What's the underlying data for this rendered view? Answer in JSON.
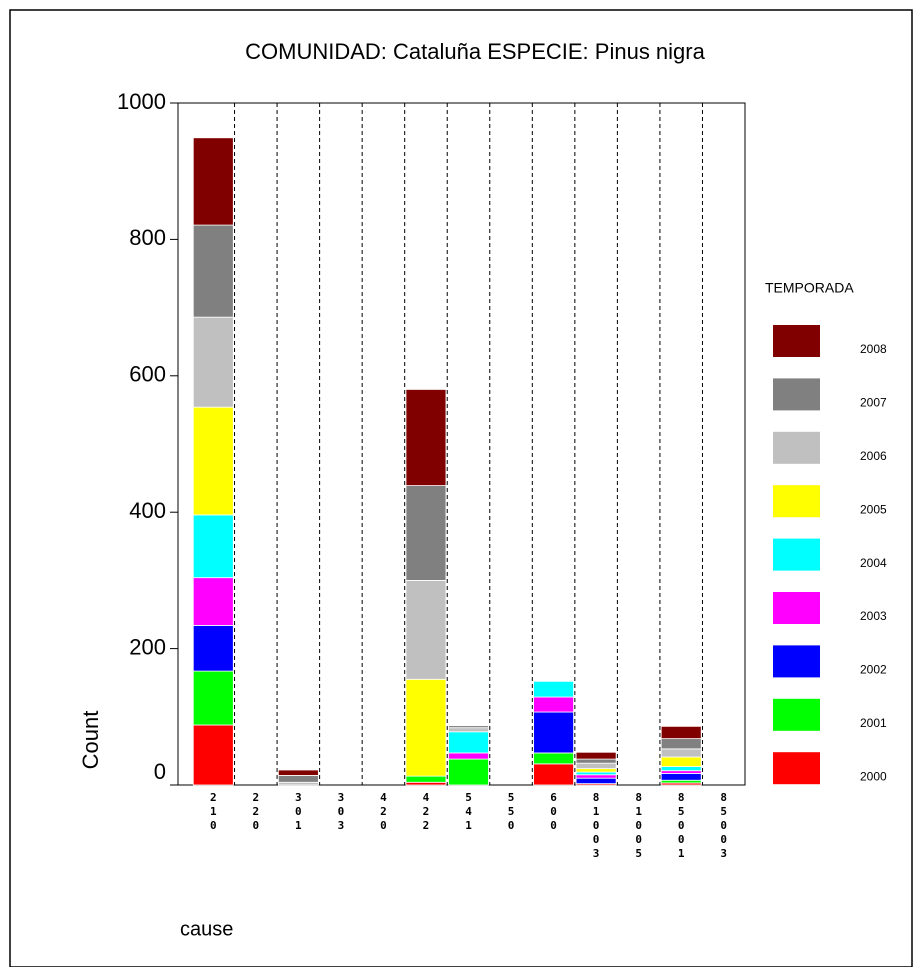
{
  "chart_data": {
    "type": "stacked_bar",
    "title": "COMUNIDAD: Cataluña     ESPECIE:  Pinus nigra",
    "y_label": "Count",
    "x_label": "cause",
    "legend_title": "TEMPORADA",
    "categories": [
      "210",
      "220",
      "301",
      "303",
      "420",
      "422",
      "541",
      "550",
      "600",
      "81003",
      "81005",
      "85001",
      "85003"
    ],
    "series": [
      {
        "name": "2000",
        "color": "#ff0000",
        "values": [
          88,
          0,
          0,
          0,
          0,
          4,
          0,
          0,
          31,
          2,
          0,
          3,
          0
        ]
      },
      {
        "name": "2001",
        "color": "#00ff00",
        "values": [
          79,
          0,
          0,
          0,
          0,
          9,
          38,
          0,
          16,
          0,
          0,
          4,
          0
        ]
      },
      {
        "name": "2002",
        "color": "#0000ff",
        "values": [
          67,
          0,
          0,
          0,
          0,
          0,
          0,
          0,
          60,
          8,
          0,
          10,
          0
        ]
      },
      {
        "name": "2003",
        "color": "#ff00ff",
        "values": [
          70,
          0,
          0,
          0,
          0,
          0,
          9,
          0,
          22,
          5,
          0,
          4,
          0
        ]
      },
      {
        "name": "2004",
        "color": "#00ffff",
        "values": [
          92,
          0,
          0,
          0,
          0,
          0,
          31,
          0,
          23,
          4,
          0,
          6,
          0
        ]
      },
      {
        "name": "2005",
        "color": "#ffff00",
        "values": [
          158,
          0,
          0,
          0,
          0,
          142,
          0,
          0,
          0,
          5,
          0,
          14,
          0
        ]
      },
      {
        "name": "2006",
        "color": "#c0c0c0",
        "values": [
          132,
          0,
          4,
          0,
          0,
          145,
          6,
          0,
          0,
          8,
          0,
          12,
          0
        ]
      },
      {
        "name": "2007",
        "color": "#808080",
        "values": [
          135,
          0,
          10,
          0,
          0,
          139,
          3,
          0,
          0,
          6,
          0,
          15,
          0
        ]
      },
      {
        "name": "2008",
        "color": "#800000",
        "values": [
          128,
          0,
          8,
          0,
          0,
          141,
          0,
          0,
          0,
          10,
          0,
          18,
          0
        ]
      }
    ],
    "ylim": [
      0,
      1000
    ],
    "yticks": [
      0,
      200,
      400,
      600,
      800,
      1000
    ]
  }
}
